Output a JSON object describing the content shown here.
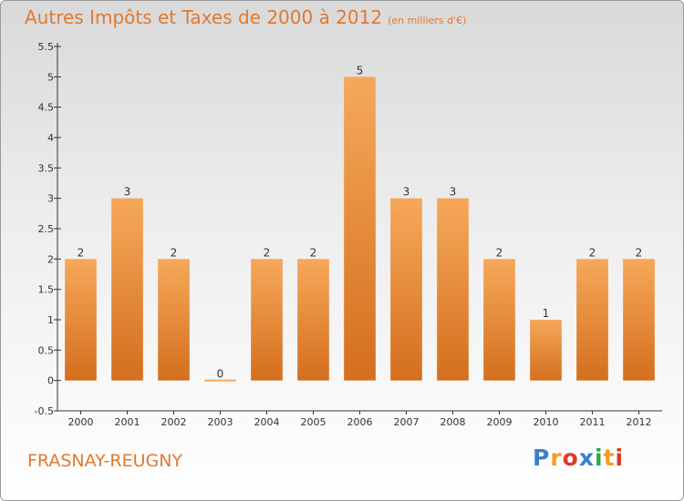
{
  "header": {
    "title": "Autres Impôts et Taxes de 2000 à 2012",
    "subtitle": "(en milliers d'€)"
  },
  "footer": {
    "commune": "FRASNAY-REUGNY",
    "logo": [
      "P",
      "r",
      "o",
      "x",
      "i",
      "t",
      "i"
    ],
    "logo_colors": [
      "#3a7fd0",
      "#f0a020",
      "#e03a2a",
      "#3a7fd0",
      "#2aa84a",
      "#f0a020",
      "#e03a2a"
    ]
  },
  "colors": {
    "bar_light": "#f6a85a",
    "bar_dark": "#d46f1e",
    "title": "#e07a30",
    "axis": "#333333"
  },
  "chart_data": {
    "type": "bar",
    "categories": [
      "2000",
      "2001",
      "2002",
      "2003",
      "2004",
      "2005",
      "2006",
      "2007",
      "2008",
      "2009",
      "2010",
      "2011",
      "2012"
    ],
    "values": [
      2,
      3,
      2,
      0,
      2,
      2,
      5,
      3,
      3,
      2,
      1,
      2,
      2
    ],
    "data_labels": [
      "2",
      "3",
      "2",
      "0",
      "2",
      "2",
      "5",
      "3",
      "3",
      "2",
      "1",
      "2",
      "2"
    ],
    "yticks": [
      "-0.5",
      "0",
      "0.5",
      "1",
      "1.5",
      "2",
      "2.5",
      "3",
      "3.5",
      "4",
      "4.5",
      "5",
      "5.5"
    ],
    "ylim": [
      -0.5,
      5.5
    ],
    "grid": false
  }
}
